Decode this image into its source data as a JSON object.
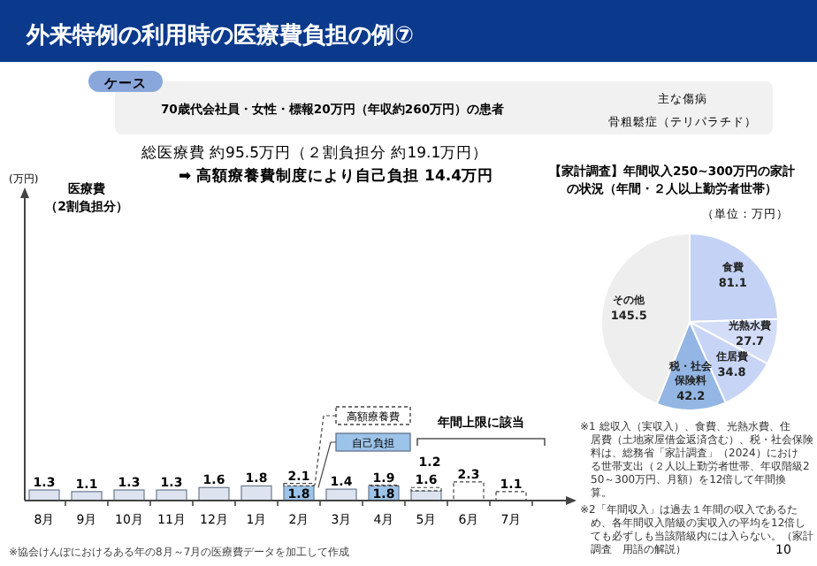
{
  "chart_data": [
    {
      "type": "bar",
      "title": "外来特例の利用時の医療費負担の例⑦",
      "ylabel": "(万円)",
      "stacked": true,
      "legend": "center",
      "tick_labels": "x",
      "ylim": [
        0,
        38
      ],
      "categories": [
        "8月",
        "9月",
        "10月",
        "11月",
        "12月",
        "1月",
        "2月",
        "3月",
        "4月",
        "5月",
        "6月",
        "7月"
      ],
      "series": [
        {
          "name": "自己負担",
          "color": "#9cc3e8",
          "colors": [
            "#dde4ef",
            "#dde4ef",
            "#dde4ef",
            "#dde4ef",
            "#dde4ef",
            "#dde4ef",
            "#9cc3e8",
            "#dde4ef",
            "#9cc3e8",
            "#dde4ef",
            null,
            null
          ],
          "values": [
            1.3,
            1.1,
            1.3,
            1.3,
            1.6,
            1.8,
            1.8,
            1.4,
            1.8,
            1.2,
            null,
            null
          ],
          "value_labels": [
            null,
            null,
            null,
            null,
            null,
            null,
            "1.8",
            null,
            "1.8",
            "1.2",
            null,
            null
          ]
        },
        {
          "name": "高額療養費",
          "color": "#ffffff",
          "line_style": "dashed",
          "values": [
            0,
            0,
            0,
            0,
            0,
            0,
            0.3,
            0,
            0.1,
            0.4,
            2.3,
            1.1
          ]
        }
      ],
      "totals": [
        "1.3",
        "1.1",
        "1.3",
        "1.3",
        "1.6",
        "1.8",
        "2.1",
        "1.4",
        "1.9",
        "1.6",
        "2.3",
        "1.1"
      ],
      "annotations": [
        "ケース",
        "70歳代会社員・女性・標報20万円（年収約260万円）の患者",
        "主な傷病",
        "骨粗鬆症（テリパラチド）",
        "総医療費 約95.5万円（２割負担分 約19.1万円）",
        "➡ 高額療養費制度により自己負担 14.4万円",
        "医療費",
        "（2割負担分）",
        "年間上限に該当",
        "※協会けんぽにおけるある年の8月～7月の医療費データを加工して作成"
      ]
    },
    {
      "type": "pie",
      "title": "【家計調査】年間収入250~300万円の家計",
      "subtitle": "の状況（年間・２人以上勤労者世帯）",
      "data_labels": true,
      "categories": [
        "食費",
        "光熱水費",
        "住居費",
        "税・社会保険料",
        "その他"
      ],
      "values": [
        81.1,
        27.7,
        34.8,
        42.2,
        145.5
      ],
      "colors": [
        "#c3d2f5",
        "#d3ddf8",
        "#c7d4f6",
        "#93b6e4",
        "#eeeeee"
      ],
      "annotations": [
        "（単位：万円）",
        "※1 総収入（実収入）、食費、光熱水費、住居費（土地家屋借金返済含む）、税・社会保険料は、総務省「家計調査」（2024）における世帯支出（２人以上勤労者世帯、年収階級250～300万円、月額）を12倍して年間換算。",
        "※2「年間収入」は過去１年間の収入であるため、各年間収入階級の実収入の平均を12倍しても必ずしも当該階級内には入らない。（家計調査　用語の解説）",
        "10"
      ]
    }
  ]
}
